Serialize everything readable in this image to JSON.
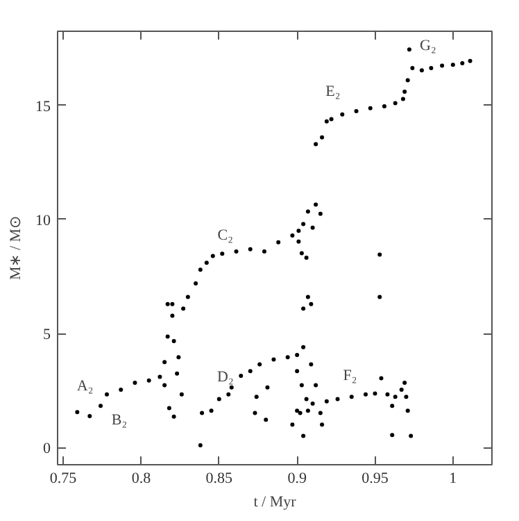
{
  "chart_data": {
    "type": "scatter",
    "xlabel": "t / Myr",
    "ylabel": "M∗ / M⊙",
    "xlim": [
      0.7464,
      1.025
    ],
    "ylim": [
      -0.75,
      18.25
    ],
    "xticks": [
      0.75,
      0.8,
      0.85,
      0.9,
      0.95,
      1
    ],
    "yticks": [
      0,
      5,
      10,
      15
    ],
    "grid": false,
    "marker": "circle",
    "series": [
      {
        "color": "#000000",
        "x": [
          0.759,
          0.767,
          0.774,
          0.778,
          0.787,
          0.796,
          0.805,
          0.812,
          0.815,
          0.815,
          0.817,
          0.817,
          0.82,
          0.82,
          0.821,
          0.823,
          0.824,
          0.826,
          0.818,
          0.821,
          0.827,
          0.83,
          0.835,
          0.838,
          0.842,
          0.846,
          0.852,
          0.861,
          0.87,
          0.879,
          0.888,
          0.897,
          0.901,
          0.904,
          0.907,
          0.912,
          0.915,
          0.91,
          0.901,
          0.903,
          0.906,
          0.907,
          0.904,
          0.909,
          0.953,
          0.953,
          0.838,
          0.839,
          0.845,
          0.85,
          0.856,
          0.858,
          0.864,
          0.87,
          0.876,
          0.885,
          0.894,
          0.9,
          0.904,
          0.874,
          0.873,
          0.88,
          0.881,
          0.9,
          0.903,
          0.906,
          0.9,
          0.904,
          0.909,
          0.912,
          0.91,
          0.897,
          0.902,
          0.907,
          0.915,
          0.916,
          0.919,
          0.926,
          0.935,
          0.944,
          0.95,
          0.954,
          0.958,
          0.963,
          0.967,
          0.969,
          0.97,
          0.961,
          0.961,
          0.971,
          0.973,
          0.912,
          0.916,
          0.919,
          0.922,
          0.929,
          0.938,
          0.947,
          0.956,
          0.963,
          0.968,
          0.969,
          0.971,
          0.972,
          0.974,
          0.98,
          0.986,
          0.993,
          1.0,
          1.006,
          1.011
        ],
        "values": [
          1.56,
          1.38,
          1.83,
          2.33,
          2.54,
          2.84,
          2.94,
          3.1,
          2.74,
          3.75,
          4.87,
          6.29,
          6.29,
          5.78,
          4.67,
          3.25,
          3.96,
          2.33,
          1.73,
          1.36,
          6.09,
          6.6,
          7.2,
          7.8,
          8.1,
          8.4,
          8.5,
          8.6,
          8.7,
          8.6,
          9.0,
          9.3,
          9.5,
          9.8,
          10.35,
          10.65,
          10.25,
          9.64,
          9.03,
          8.52,
          8.32,
          6.6,
          6.09,
          6.29,
          8.46,
          6.6,
          0.1,
          1.52,
          1.62,
          2.13,
          2.33,
          2.64,
          3.15,
          3.35,
          3.65,
          3.86,
          3.96,
          4.06,
          4.4,
          2.23,
          1.52,
          1.22,
          2.64,
          3.35,
          2.74,
          2.13,
          1.62,
          0.51,
          3.65,
          2.74,
          1.93,
          1.01,
          1.52,
          1.62,
          1.52,
          1.01,
          2.03,
          2.13,
          2.23,
          2.33,
          2.37,
          3.04,
          2.33,
          2.23,
          2.54,
          2.84,
          2.23,
          1.83,
          0.55,
          1.62,
          0.51,
          13.3,
          13.6,
          14.3,
          14.4,
          14.6,
          14.75,
          14.88,
          14.96,
          15.1,
          15.28,
          15.6,
          16.1,
          17.45,
          16.64,
          16.54,
          16.64,
          16.74,
          16.78,
          16.85,
          16.95
        ]
      }
    ],
    "annotations": [
      "A₂",
      "B₂",
      "C₂",
      "D₂",
      "E₂",
      "F₂",
      "G₂"
    ]
  }
}
